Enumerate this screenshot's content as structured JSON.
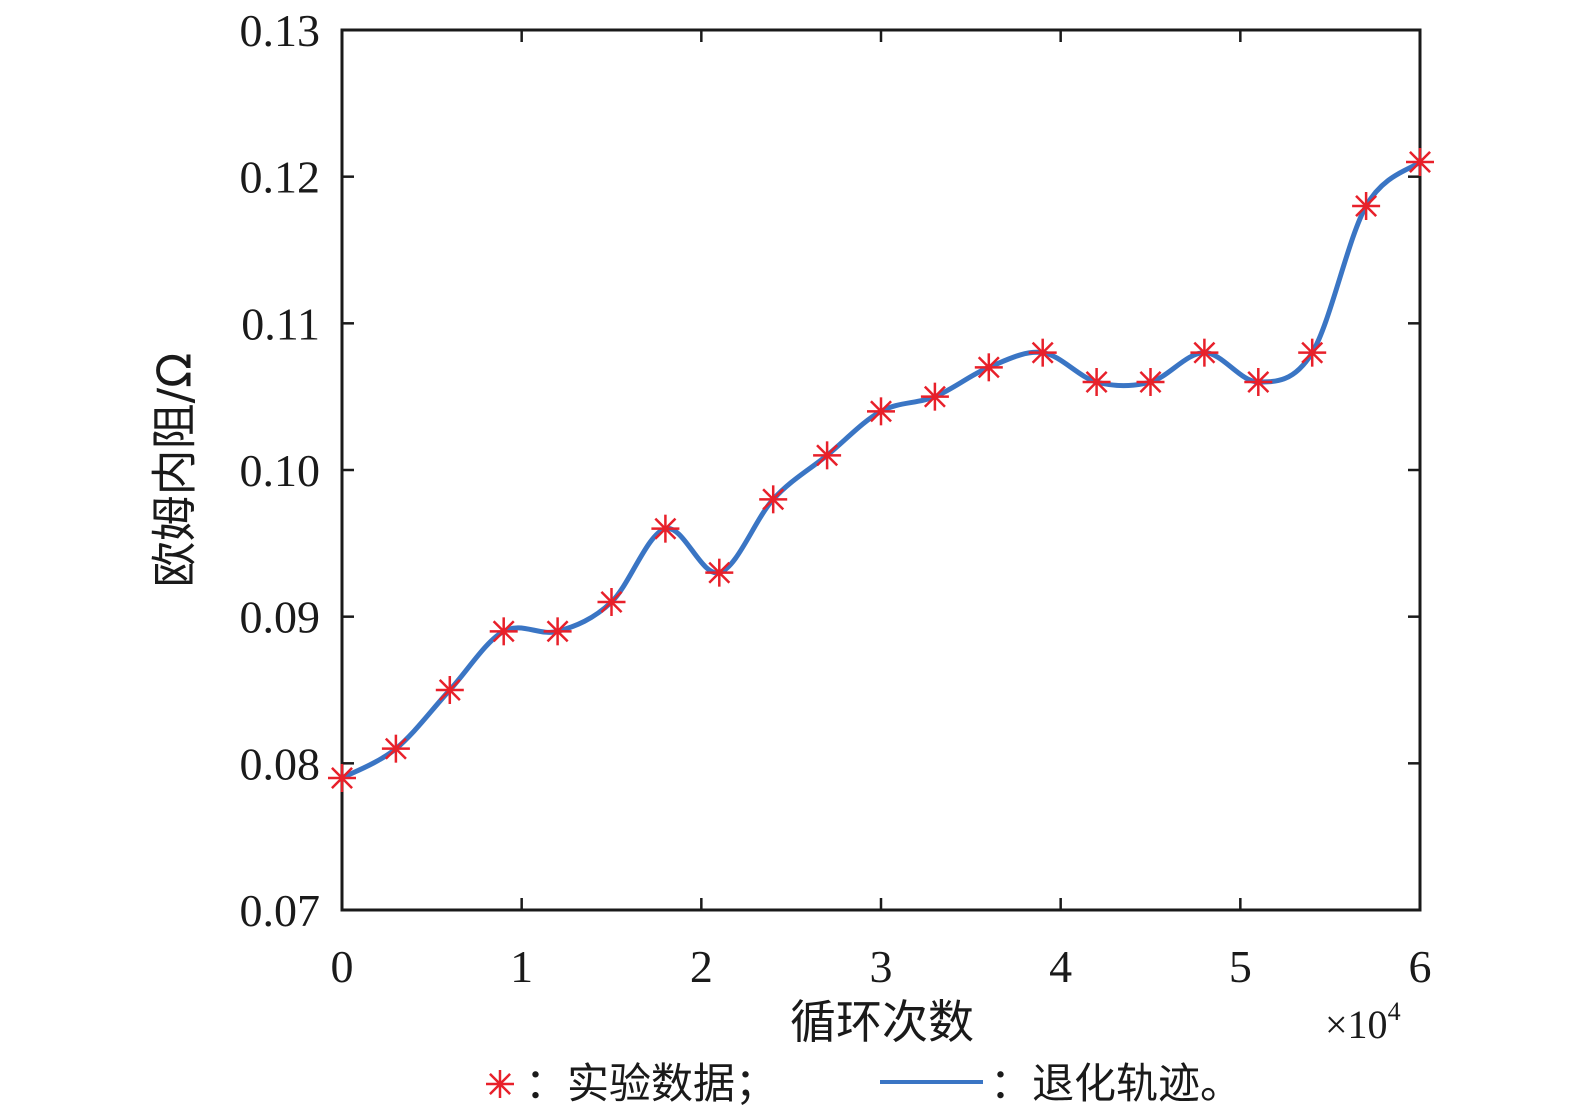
{
  "chart_data": {
    "type": "line",
    "xlabel": "循环次数",
    "ylabel": "欧姆内阻/Ω",
    "x_multiplier": "×10",
    "x_multiplier_exp": "4",
    "xlim": [
      0,
      60000
    ],
    "ylim": [
      0.07,
      0.13
    ],
    "x_ticks": [
      0,
      10000,
      20000,
      30000,
      40000,
      50000,
      60000
    ],
    "x_tick_labels": [
      "0",
      "1",
      "2",
      "3",
      "4",
      "5",
      "6"
    ],
    "y_ticks": [
      0.07,
      0.08,
      0.09,
      0.1,
      0.11,
      0.12,
      0.13
    ],
    "y_tick_labels": [
      "0.07",
      "0.08",
      "0.09",
      "0.10",
      "0.11",
      "0.12",
      "0.13"
    ],
    "grid": false,
    "legend_position": "bottom",
    "series": [
      {
        "name": "实验数据",
        "kind": "scatter",
        "marker": "asterisk",
        "color": "#e8202a",
        "x": [
          0,
          3000,
          6000,
          9000,
          12000,
          15000,
          18000,
          21000,
          24000,
          27000,
          30000,
          33000,
          36000,
          39000,
          42000,
          45000,
          48000,
          51000,
          54000,
          57000,
          60000
        ],
        "y": [
          0.079,
          0.081,
          0.085,
          0.089,
          0.089,
          0.091,
          0.096,
          0.093,
          0.098,
          0.101,
          0.104,
          0.105,
          0.107,
          0.108,
          0.106,
          0.106,
          0.108,
          0.106,
          0.108,
          0.118,
          0.121
        ]
      },
      {
        "name": "退化轨迹",
        "kind": "line",
        "color": "#3a75c4",
        "x": [
          0,
          3000,
          6000,
          9000,
          12000,
          15000,
          18000,
          21000,
          24000,
          27000,
          30000,
          33000,
          36000,
          39000,
          42000,
          45000,
          48000,
          51000,
          54000,
          57000,
          60000
        ],
        "y": [
          0.079,
          0.081,
          0.085,
          0.089,
          0.089,
          0.091,
          0.096,
          0.093,
          0.098,
          0.101,
          0.104,
          0.105,
          0.107,
          0.108,
          0.106,
          0.106,
          0.108,
          0.106,
          0.108,
          0.118,
          0.121
        ]
      }
    ]
  },
  "legend": {
    "marker_glyph": "*",
    "scatter_label": "：实验数据；",
    "line_label": "：退化轨迹。"
  }
}
